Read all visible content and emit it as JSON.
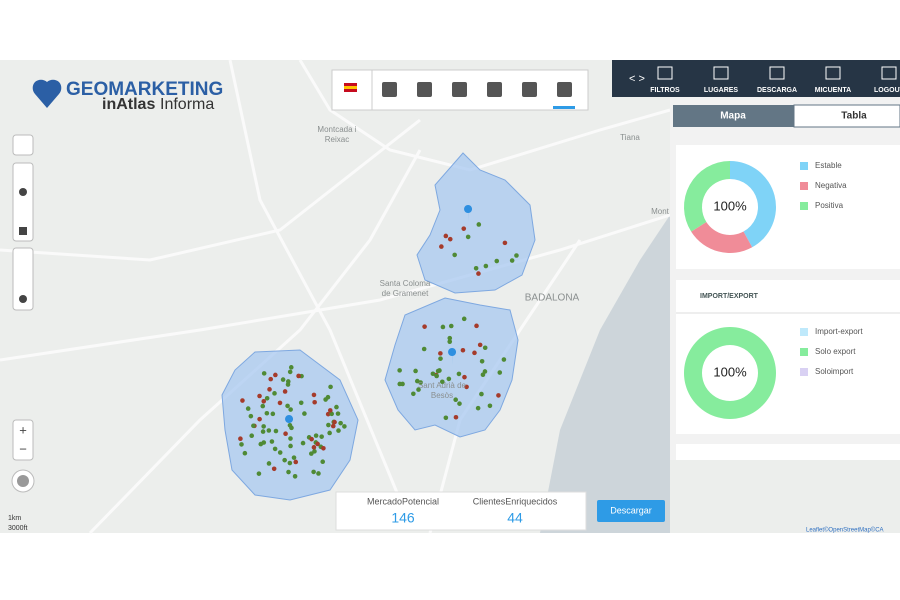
{
  "header": {
    "logo_title": "GEOMARKETING",
    "logo_brand": "inAtlas",
    "logo_rest": "Informa"
  },
  "nav": [
    "FILTROS",
    "LUGARES",
    "DESCARGA",
    "MICUENTA",
    "LOGOUT"
  ],
  "tabs": [
    "Mapa",
    "Tabla"
  ],
  "map_labels": [
    "Montcada i",
    "Reixac",
    "Santa Coloma",
    "de Gramenet",
    "BADALONA",
    "Sant Adrià de",
    "Besòs",
    "Tiana",
    "Mont"
  ],
  "donuts": [
    {
      "center_label": "100%",
      "categories": [
        "Estable",
        "Negativa",
        "Positiva"
      ],
      "colors": [
        "#7fd3f7",
        "#f08c98",
        "#86ec9d"
      ],
      "values": [
        42,
        24,
        34
      ]
    },
    {
      "title": "IMPORT/EXPORT",
      "center_label": "100%",
      "categories": [
        "Import-export",
        "Solo export",
        "Soloimport"
      ],
      "colors": [
        "#bfe9fb",
        "#86ec9d",
        "#d9d1f3"
      ],
      "values": [
        0,
        100,
        0
      ]
    }
  ],
  "stats": [
    {
      "label": "MercadoPotencial",
      "value": 146
    },
    {
      "label": "ClientesEnriquecidos",
      "value": 44
    }
  ],
  "download_button": "Descargar",
  "scale": [
    "1km",
    "3000ft"
  ],
  "attribution": "Leaflet©OpenStreetMap©CA"
}
